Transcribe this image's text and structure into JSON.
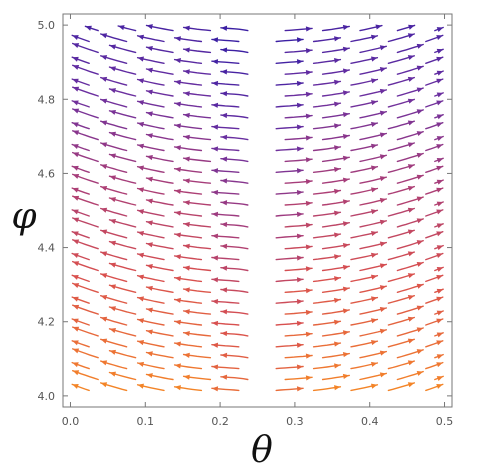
{
  "chart_data": {
    "type": "streamplot",
    "title": "",
    "xlabel": "θ",
    "ylabel": "φ",
    "xlim": [
      -0.01,
      0.51
    ],
    "ylim": [
      3.97,
      5.03
    ],
    "x_ticks": [
      0.0,
      0.1,
      0.2,
      0.3,
      0.4,
      0.5
    ],
    "x_tick_labels": [
      "0.0",
      "0.1",
      "0.2",
      "0.3",
      "0.4",
      "0.5"
    ],
    "y_ticks": [
      4.0,
      4.2,
      4.4,
      4.6,
      4.8,
      5.0
    ],
    "y_tick_labels": [
      "4.0",
      "4.2",
      "4.4",
      "4.6",
      "4.8",
      "5.0"
    ],
    "field": {
      "dividing_line_theta": 0.25,
      "flow_direction": "away from theta = 0.25 toward theta = 0 and theta = 0.5, bending upward near the boundaries",
      "color_scale": "speed: yellow-orange (fast, low phi) to dark purple (slow, high phi)"
    },
    "colormap": [
      "#ffb000",
      "#f07a30",
      "#d9504e",
      "#a93e78",
      "#6a2fa0",
      "#3b1fa3"
    ],
    "grid": false,
    "frame": true
  }
}
